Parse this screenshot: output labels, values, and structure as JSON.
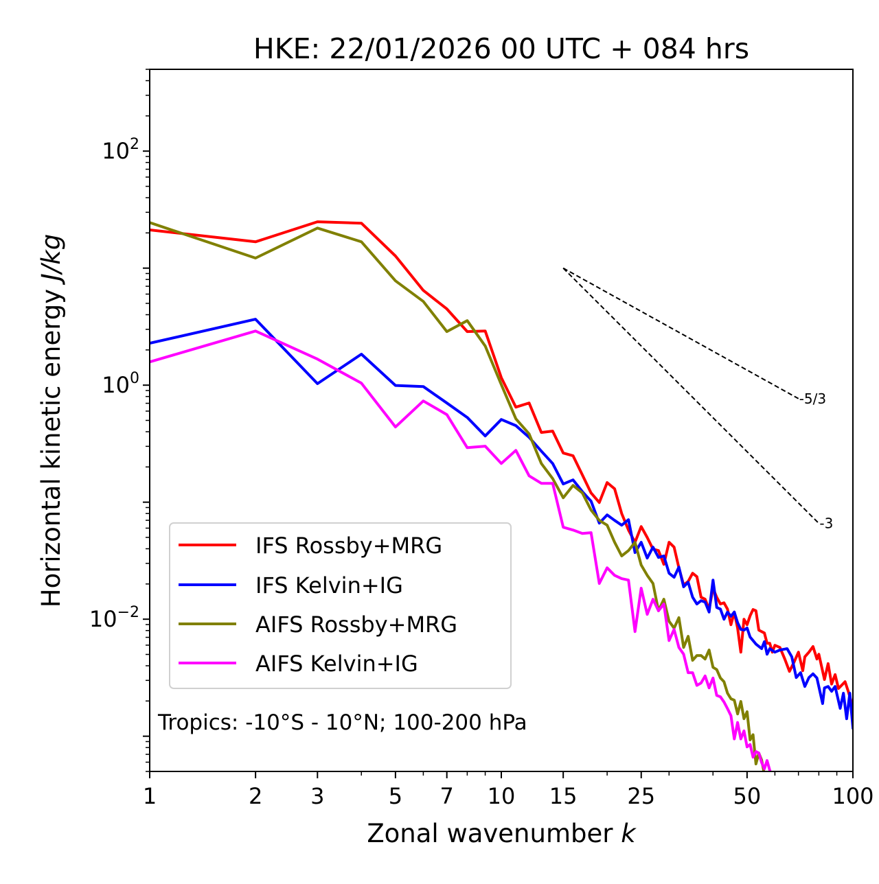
{
  "chart_data": {
    "type": "line",
    "title": "HKE: 22/01/2026 00 UTC + 084 hrs",
    "xlabel": "Zonal wavenumber",
    "xlabel_var": "k",
    "ylabel": "Horizontal kinetic energy",
    "ylabel_unit": "J/kg",
    "xscale": "log",
    "yscale": "log",
    "xlim": [
      1,
      100
    ],
    "ylim": [
      0.0005,
      500
    ],
    "grid": false,
    "legend_position": "lower-left",
    "x_tick_labels": [
      {
        "value": 1,
        "label": "1"
      },
      {
        "value": 2,
        "label": "2"
      },
      {
        "value": 3,
        "label": "3"
      },
      {
        "value": 5,
        "label": "5"
      },
      {
        "value": 7,
        "label": "7"
      },
      {
        "value": 10,
        "label": "10"
      },
      {
        "value": 15,
        "label": "15"
      },
      {
        "value": 25,
        "label": "25"
      },
      {
        "value": 50,
        "label": "50"
      },
      {
        "value": 100,
        "label": "100"
      }
    ],
    "x_minor_ticks": [
      4,
      6,
      8,
      9,
      20,
      30,
      40,
      60,
      70,
      80,
      90
    ],
    "y_tick_labels": [
      {
        "value": 100,
        "base": "10",
        "exp": "2"
      },
      {
        "value": 1,
        "base": "10",
        "exp": "0"
      },
      {
        "value": 0.01,
        "base": "10",
        "exp": "−2"
      }
    ],
    "annotation": "Tropics: -10°S - 10°N; 100-200 hPa",
    "reference_slopes": [
      {
        "label": "-5/3",
        "slope": -1.6667,
        "k_start": 15,
        "k_end": 70,
        "y_start": 10
      },
      {
        "label": "-3",
        "slope": -3,
        "k_start": 15,
        "k_end": 80,
        "y_start": 10
      }
    ],
    "series": [
      {
        "name": "IFS Rossby+MRG",
        "color": "#ff0000",
        "points": [
          [
            1,
            21.2
          ],
          [
            2,
            16.8
          ],
          [
            3,
            24.9
          ],
          [
            4,
            24.2
          ],
          [
            5,
            12.7
          ],
          [
            6,
            6.45
          ],
          [
            7,
            4.48
          ],
          [
            8,
            2.87
          ],
          [
            9,
            2.9
          ],
          [
            10,
            1.16
          ],
          [
            11,
            0.649
          ],
          [
            12,
            0.704
          ],
          [
            13,
            0.394
          ],
          [
            14,
            0.405
          ],
          [
            15,
            0.263
          ],
          [
            16,
            0.249
          ],
          [
            17,
            0.171
          ],
          [
            18,
            0.12
          ],
          [
            19,
            0.0993
          ],
          [
            20,
            0.147
          ],
          [
            21,
            0.13
          ],
          [
            22,
            0.08
          ],
          [
            23,
            0.0578
          ],
          [
            24,
            0.0454
          ],
          [
            25,
            0.0619
          ],
          [
            26,
            0.0499
          ],
          [
            27,
            0.0397
          ],
          [
            28,
            0.0386
          ],
          [
            29,
            0.0294
          ],
          [
            30,
            0.0454
          ],
          [
            31,
            0.0413
          ],
          [
            32,
            0.0275
          ],
          [
            33,
            0.0196
          ],
          [
            34,
            0.021
          ],
          [
            35,
            0.0247
          ],
          [
            36,
            0.0231
          ],
          [
            37,
            0.0154
          ],
          [
            38,
            0.0148
          ],
          [
            39,
            0.0122
          ],
          [
            40,
            0.0184
          ],
          [
            41,
            0.0154
          ],
          [
            42,
            0.0135
          ],
          [
            43,
            0.0138
          ],
          [
            44,
            0.0122
          ],
          [
            45,
            0.00897
          ],
          [
            46,
            0.0115
          ],
          [
            47,
            0.00839
          ],
          [
            48,
            0.00523
          ],
          [
            49,
            0.01
          ],
          [
            50,
            0.00897
          ],
          [
            51,
            0.0107
          ],
          [
            52,
            0.0121
          ],
          [
            53,
            0.0118
          ],
          [
            54,
            0.00806
          ],
          [
            56,
            0.00762
          ],
          [
            57,
            0.00623
          ],
          [
            58,
            0.00623
          ],
          [
            59,
            0.00523
          ],
          [
            60,
            0.00598
          ],
          [
            62,
            0.00574
          ],
          [
            64,
            0.00457
          ],
          [
            66,
            0.00358
          ],
          [
            68,
            0.00428
          ],
          [
            70,
            0.00523
          ],
          [
            72,
            0.00363
          ],
          [
            73,
            0.00477
          ],
          [
            75,
            0.00523
          ],
          [
            77,
            0.00584
          ],
          [
            79,
            0.00457
          ],
          [
            80,
            0.00502
          ],
          [
            83,
            0.00305
          ],
          [
            85,
            0.00417
          ],
          [
            87,
            0.00279
          ],
          [
            89,
            0.00336
          ],
          [
            91,
            0.00256
          ],
          [
            95,
            0.00292
          ],
          [
            97,
            0.00242
          ],
          [
            100,
            0.00177
          ]
        ]
      },
      {
        "name": "IFS Kelvin+IG",
        "color": "#0000ff",
        "points": [
          [
            1,
            2.28
          ],
          [
            2,
            3.66
          ],
          [
            3,
            1.03
          ],
          [
            4,
            1.84
          ],
          [
            5,
            0.994
          ],
          [
            6,
            0.973
          ],
          [
            7,
            0.704
          ],
          [
            8,
            0.53
          ],
          [
            9,
            0.368
          ],
          [
            10,
            0.509
          ],
          [
            11,
            0.451
          ],
          [
            12,
            0.358
          ],
          [
            13,
            0.273
          ],
          [
            14,
            0.214
          ],
          [
            15,
            0.143
          ],
          [
            16,
            0.155
          ],
          [
            17,
            0.123
          ],
          [
            18,
            0.102
          ],
          [
            19,
            0.0662
          ],
          [
            20,
            0.0779
          ],
          [
            21,
            0.0699
          ],
          [
            22,
            0.0636
          ],
          [
            23,
            0.0708
          ],
          [
            24,
            0.0371
          ],
          [
            25,
            0.0454
          ],
          [
            26,
            0.0333
          ],
          [
            27,
            0.0413
          ],
          [
            28,
            0.0337
          ],
          [
            29,
            0.0347
          ],
          [
            30,
            0.0247
          ],
          [
            31,
            0.0228
          ],
          [
            32,
            0.0279
          ],
          [
            33,
            0.0189
          ],
          [
            34,
            0.0207
          ],
          [
            35,
            0.0154
          ],
          [
            36,
            0.0135
          ],
          [
            37,
            0.0144
          ],
          [
            38,
            0.014
          ],
          [
            39,
            0.0115
          ],
          [
            40,
            0.0216
          ],
          [
            41,
            0.0126
          ],
          [
            42,
            0.0122
          ],
          [
            43,
            0.01
          ],
          [
            44,
            0.0115
          ],
          [
            45,
            0.0106
          ],
          [
            46,
            0.0115
          ],
          [
            47,
            0.00935
          ],
          [
            48,
            0.00817
          ],
          [
            49,
            0.00806
          ],
          [
            50,
            0.00841
          ],
          [
            51,
            0.00704
          ],
          [
            52,
            0.00657
          ],
          [
            53,
            0.00613
          ],
          [
            55,
            0.0056
          ],
          [
            56,
            0.00643
          ],
          [
            57,
            0.00502
          ],
          [
            58,
            0.0056
          ],
          [
            60,
            0.00523
          ],
          [
            62,
            0.00545
          ],
          [
            65,
            0.0056
          ],
          [
            67,
            0.00477
          ],
          [
            69,
            0.00317
          ],
          [
            71,
            0.00349
          ],
          [
            73,
            0.00266
          ],
          [
            75,
            0.00317
          ],
          [
            77,
            0.00341
          ],
          [
            79,
            0.00314
          ],
          [
            82,
            0.0019
          ],
          [
            83,
            0.00259
          ],
          [
            85,
            0.00266
          ],
          [
            87,
            0.00242
          ],
          [
            89,
            0.00266
          ],
          [
            92,
            0.00173
          ],
          [
            94,
            0.00233
          ],
          [
            96,
            0.00141
          ],
          [
            98,
            0.00233
          ],
          [
            100,
            0.00118
          ]
        ]
      },
      {
        "name": "AIFS Rossby+MRG",
        "color": "#808000",
        "points": [
          [
            1,
            24.5
          ],
          [
            2,
            12.2
          ],
          [
            3,
            22.0
          ],
          [
            4,
            16.8
          ],
          [
            5,
            7.79
          ],
          [
            6,
            5.19
          ],
          [
            7,
            2.87
          ],
          [
            8,
            3.56
          ],
          [
            9,
            2.16
          ],
          [
            10,
            1.01
          ],
          [
            11,
            0.516
          ],
          [
            12,
            0.383
          ],
          [
            13,
            0.214
          ],
          [
            14,
            0.159
          ],
          [
            15,
            0.109
          ],
          [
            16,
            0.139
          ],
          [
            17,
            0.12
          ],
          [
            18,
            0.0857
          ],
          [
            19,
            0.0699
          ],
          [
            20,
            0.0636
          ],
          [
            21,
            0.0454
          ],
          [
            22,
            0.0347
          ],
          [
            23,
            0.0386
          ],
          [
            24,
            0.0454
          ],
          [
            25,
            0.029
          ],
          [
            26,
            0.0237
          ],
          [
            27,
            0.0202
          ],
          [
            28,
            0.0118
          ],
          [
            29,
            0.0148
          ],
          [
            30,
            0.0096
          ],
          [
            31,
            0.00839
          ],
          [
            32,
            0.0103
          ],
          [
            33,
            0.00574
          ],
          [
            34,
            0.00714
          ],
          [
            35,
            0.00445
          ],
          [
            36,
            0.00489
          ],
          [
            37,
            0.00489
          ],
          [
            38,
            0.00457
          ],
          [
            39,
            0.00545
          ],
          [
            40,
            0.00388
          ],
          [
            41,
            0.00371
          ],
          [
            42,
            0.00314
          ],
          [
            43,
            0.00292
          ],
          [
            44,
            0.00233
          ],
          [
            45,
            0.00209
          ],
          [
            46,
            0.00203
          ],
          [
            47,
            0.00155
          ],
          [
            48,
            0.00198
          ],
          [
            49,
            0.00141
          ],
          [
            50,
            0.00162
          ],
          [
            51,
            0.00093
          ],
          [
            52,
            0.00103
          ],
          [
            53,
            0.000579
          ],
          [
            54,
            0.000718
          ],
          [
            55,
            0.000627
          ],
          [
            56,
            0.00047
          ]
        ]
      },
      {
        "name": "AIFS Kelvin+IG",
        "color": "#ff00ff",
        "points": [
          [
            1,
            1.58
          ],
          [
            2,
            2.9
          ],
          [
            3,
            1.67
          ],
          [
            4,
            1.04
          ],
          [
            5,
            0.439
          ],
          [
            6,
            0.733
          ],
          [
            7,
            0.56
          ],
          [
            8,
            0.292
          ],
          [
            9,
            0.301
          ],
          [
            10,
            0.214
          ],
          [
            11,
            0.277
          ],
          [
            12,
            0.168
          ],
          [
            13,
            0.145
          ],
          [
            14,
            0.145
          ],
          [
            15,
            0.0611
          ],
          [
            16,
            0.0578
          ],
          [
            17,
            0.0541
          ],
          [
            18,
            0.0549
          ],
          [
            19,
            0.0202
          ],
          [
            20,
            0.0275
          ],
          [
            21,
            0.0237
          ],
          [
            22,
            0.0222
          ],
          [
            23,
            0.0216
          ],
          [
            24,
            0.00784
          ],
          [
            25,
            0.0184
          ],
          [
            26,
            0.011
          ],
          [
            27,
            0.0148
          ],
          [
            28,
            0.0118
          ],
          [
            29,
            0.0135
          ],
          [
            30,
            0.00657
          ],
          [
            31,
            0.00817
          ],
          [
            32,
            0.00574
          ],
          [
            33,
            0.00502
          ],
          [
            34,
            0.00349
          ],
          [
            35,
            0.00349
          ],
          [
            36,
            0.00272
          ],
          [
            37,
            0.00285
          ],
          [
            38,
            0.00327
          ],
          [
            39,
            0.00259
          ],
          [
            40,
            0.00314
          ],
          [
            41,
            0.00223
          ],
          [
            42,
            0.00217
          ],
          [
            43,
            0.00196
          ],
          [
            44,
            0.00172
          ],
          [
            45,
            0.0015
          ],
          [
            46,
            0.000949
          ],
          [
            47,
            0.00131
          ],
          [
            48,
            0.000949
          ],
          [
            49,
            0.00111
          ],
          [
            50,
            0.000811
          ],
          [
            51,
            0.00085
          ],
          [
            52,
            0.000662
          ],
          [
            53,
            0.000739
          ],
          [
            54,
            0.000718
          ],
          [
            55,
            0.000595
          ],
          [
            56,
            0.000526
          ],
          [
            57,
            0.00062
          ],
          [
            58,
            0.000512
          ],
          [
            59,
            0.00045
          ]
        ]
      }
    ]
  }
}
